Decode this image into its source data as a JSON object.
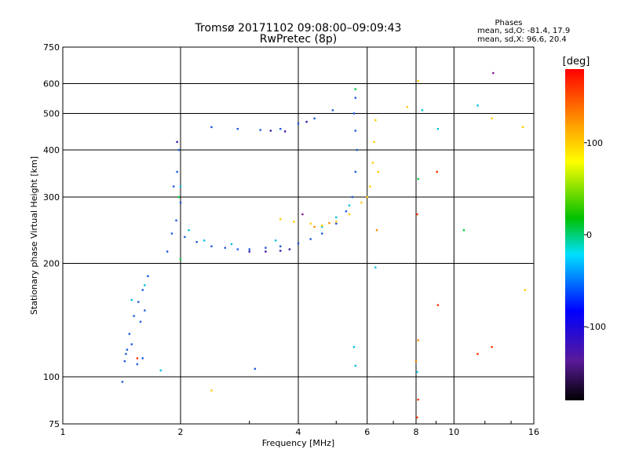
{
  "chart_data": {
    "type": "scatter",
    "title": "Tromsø 20171102 09:08:00–09:09:43",
    "subtitle": "RwPretec (8p)",
    "xlabel": "Frequency [MHz]",
    "ylabel": "Stationary phase Virtual Height [km]",
    "x_scale": "log2",
    "y_scale": "log",
    "xlim": [
      1,
      16
    ],
    "ylim": [
      75,
      750
    ],
    "x_ticks": [
      1,
      2,
      4,
      6,
      8,
      10,
      16
    ],
    "y_ticks": [
      75,
      100,
      200,
      300,
      400,
      500,
      600,
      750
    ],
    "grid": true,
    "stats": {
      "header": "Phases",
      "o_line": "mean, sd,O:  -81.4, 17.9",
      "x_line": "mean, sd,X:  96.6, 20.4"
    },
    "colorbar": {
      "label": "[deg]",
      "range": [
        -180,
        180
      ],
      "ticks": [
        100,
        0,
        -100
      ],
      "colormap": "rainbow: black, purple, blue, cyan, green, yellow, orange, red"
    },
    "series": [
      {
        "name": "",
        "color": "#1e5adc",
        "points": [
          [
            1.44,
            110
          ],
          [
            1.46,
            118
          ],
          [
            1.48,
            130
          ],
          [
            1.52,
            145
          ],
          [
            1.56,
            158
          ],
          [
            1.6,
            170
          ],
          [
            1.65,
            185
          ],
          [
            1.5,
            122
          ],
          [
            1.58,
            140
          ],
          [
            1.62,
            150
          ],
          [
            1.45,
            115
          ],
          [
            1.55,
            108
          ],
          [
            1.6,
            112
          ],
          [
            1.85,
            215
          ],
          [
            1.9,
            240
          ],
          [
            1.95,
            260
          ],
          [
            2.0,
            290
          ],
          [
            1.96,
            350
          ],
          [
            1.98,
            400
          ],
          [
            1.92,
            320
          ],
          [
            2.05,
            235
          ],
          [
            2.2,
            228
          ],
          [
            2.4,
            222
          ],
          [
            2.6,
            220
          ],
          [
            2.8,
            218
          ],
          [
            3.0,
            218
          ],
          [
            3.3,
            220
          ],
          [
            3.6,
            222
          ],
          [
            4.0,
            226
          ],
          [
            4.3,
            232
          ],
          [
            4.6,
            240
          ],
          [
            5.0,
            255
          ],
          [
            5.3,
            275
          ],
          [
            5.5,
            300
          ],
          [
            5.6,
            350
          ],
          [
            5.65,
            400
          ],
          [
            5.6,
            450
          ],
          [
            5.55,
            500
          ],
          [
            5.6,
            550
          ],
          [
            2.4,
            460
          ],
          [
            2.8,
            455
          ],
          [
            3.2,
            452
          ],
          [
            3.6,
            455
          ],
          [
            4.0,
            470
          ],
          [
            4.4,
            485
          ],
          [
            4.9,
            510
          ],
          [
            3.1,
            105
          ],
          [
            1.42,
            97
          ]
        ]
      },
      {
        "name": "",
        "color": "#00c0e0",
        "points": [
          [
            1.5,
            160
          ],
          [
            1.62,
            175
          ],
          [
            2.0,
            320
          ],
          [
            2.1,
            245
          ],
          [
            2.3,
            230
          ],
          [
            2.7,
            225
          ],
          [
            3.5,
            230
          ],
          [
            4.6,
            250
          ],
          [
            5.0,
            265
          ],
          [
            5.4,
            285
          ],
          [
            5.55,
            120
          ],
          [
            5.6,
            107
          ],
          [
            6.3,
            195
          ],
          [
            8.05,
            103
          ],
          [
            8.3,
            510
          ],
          [
            9.1,
            455
          ],
          [
            11.5,
            525
          ],
          [
            1.78,
            104
          ]
        ]
      },
      {
        "name": "",
        "color": "#3a18a8",
        "points": [
          [
            3.0,
            215
          ],
          [
            3.3,
            215
          ],
          [
            3.6,
            216
          ],
          [
            3.8,
            218
          ],
          [
            3.4,
            450
          ],
          [
            3.7,
            448
          ],
          [
            4.2,
            475
          ],
          [
            1.96,
            420
          ]
        ]
      },
      {
        "name": "",
        "color": "#ffcc00",
        "points": [
          [
            3.6,
            262
          ],
          [
            3.9,
            258
          ],
          [
            4.3,
            255
          ],
          [
            4.6,
            252
          ],
          [
            5.0,
            258
          ],
          [
            5.4,
            270
          ],
          [
            5.8,
            290
          ],
          [
            6.1,
            320
          ],
          [
            6.2,
            370
          ],
          [
            6.25,
            420
          ],
          [
            6.3,
            480
          ],
          [
            6.4,
            350
          ],
          [
            6.0,
            300
          ],
          [
            2.4,
            92
          ],
          [
            7.6,
            520
          ],
          [
            8.1,
            610
          ],
          [
            12.5,
            485
          ],
          [
            15.0,
            460
          ],
          [
            15.2,
            170
          ]
        ]
      },
      {
        "name": "",
        "color": "#00d040",
        "points": [
          [
            2.0,
            205
          ],
          [
            1.98,
            300
          ],
          [
            5.6,
            580
          ],
          [
            10.6,
            245
          ],
          [
            8.1,
            335
          ]
        ]
      },
      {
        "name": "",
        "color": "#ff3000",
        "points": [
          [
            1.55,
            112
          ],
          [
            8.05,
            270
          ],
          [
            8.05,
            78
          ],
          [
            8.1,
            87
          ],
          [
            9.05,
            350
          ],
          [
            9.1,
            155
          ],
          [
            11.5,
            115
          ],
          [
            12.5,
            120
          ]
        ]
      },
      {
        "name": "",
        "color": "#ff8c00",
        "points": [
          [
            4.4,
            250
          ],
          [
            4.8,
            256
          ],
          [
            6.35,
            245
          ],
          [
            8.1,
            125
          ],
          [
            8.0,
            110
          ]
        ]
      },
      {
        "name": "",
        "color": "#8b1a8b",
        "points": [
          [
            12.6,
            640
          ],
          [
            4.1,
            270
          ]
        ]
      }
    ]
  }
}
